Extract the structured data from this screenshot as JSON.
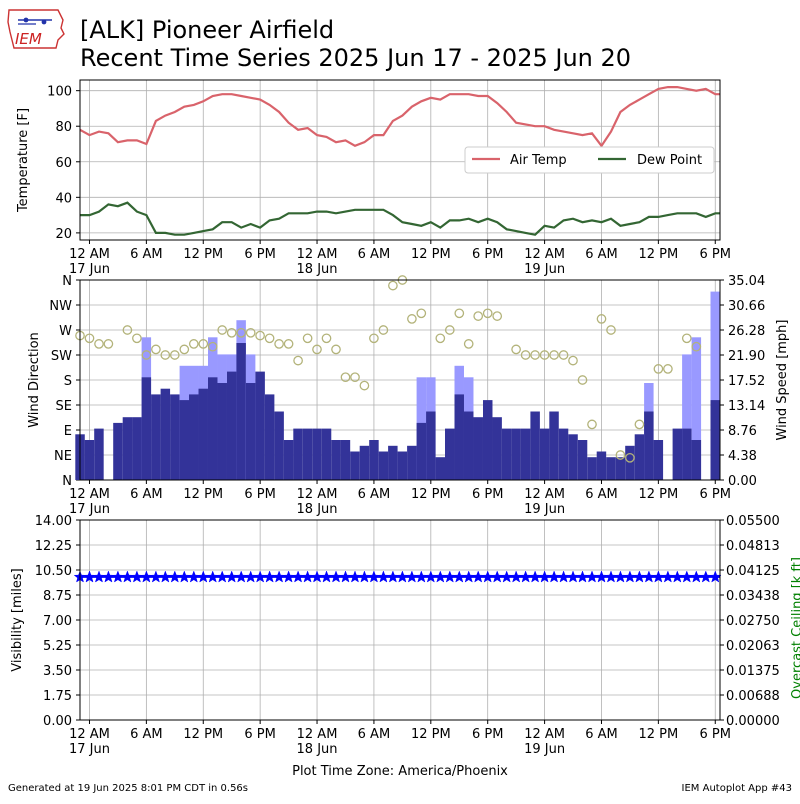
{
  "header": {
    "logo_text": "IEM",
    "title_line1": "[ALK] Pioneer Airfield",
    "title_line2": "Recent Time Series 2025 Jun 17 - 2025 Jun 20"
  },
  "footer": {
    "generated": "Generated at 19 Jun 2025 8:01 PM CDT in 0.56s",
    "app": "IEM Autoplot App #43",
    "timezone": "Plot Time Zone: America/Phoenix"
  },
  "time_axis": {
    "ticks": [
      {
        "h": 0,
        "label": "12 AM",
        "sub": "17 Jun"
      },
      {
        "h": 6,
        "label": "6 AM",
        "sub": ""
      },
      {
        "h": 12,
        "label": "12 PM",
        "sub": ""
      },
      {
        "h": 18,
        "label": "6 PM",
        "sub": ""
      },
      {
        "h": 24,
        "label": "12 AM",
        "sub": "18 Jun"
      },
      {
        "h": 30,
        "label": "6 AM",
        "sub": ""
      },
      {
        "h": 36,
        "label": "12 PM",
        "sub": ""
      },
      {
        "h": 42,
        "label": "6 PM",
        "sub": ""
      },
      {
        "h": 48,
        "label": "12 AM",
        "sub": "19 Jun"
      },
      {
        "h": 54,
        "label": "6 AM",
        "sub": ""
      },
      {
        "h": 60,
        "label": "12 PM",
        "sub": ""
      },
      {
        "h": 66,
        "label": "6 PM",
        "sub": ""
      }
    ]
  },
  "chart_data": [
    {
      "type": "line",
      "ylabel": "Temperature [F]",
      "ylim": [
        16,
        106
      ],
      "yticks": [
        20,
        40,
        60,
        80,
        100
      ],
      "xlim": [
        -1,
        66.5
      ],
      "grid": true,
      "legend_position": "right",
      "series": [
        {
          "name": "Air Temp",
          "color": "#d9636b",
          "x": [
            -1,
            0,
            1,
            2,
            3,
            4,
            5,
            6,
            7,
            8,
            9,
            10,
            11,
            12,
            13,
            14,
            15,
            16,
            17,
            18,
            19,
            20,
            21,
            22,
            23,
            24,
            25,
            26,
            27,
            28,
            29,
            30,
            31,
            32,
            33,
            34,
            35,
            36,
            37,
            38,
            39,
            40,
            41,
            42,
            43,
            44,
            45,
            46,
            47,
            48,
            49,
            50,
            51,
            52,
            53,
            54,
            55,
            56,
            57,
            58,
            59,
            60,
            61,
            62,
            63,
            64,
            65,
            66,
            66.5
          ],
          "values": [
            78,
            75,
            77,
            76,
            71,
            72,
            72,
            70,
            83,
            86,
            88,
            91,
            92,
            94,
            97,
            98,
            98,
            97,
            96,
            95,
            92,
            88,
            82,
            78,
            79,
            75,
            74,
            71,
            72,
            69,
            71,
            75,
            75,
            83,
            86,
            91,
            94,
            96,
            95,
            98,
            98,
            98,
            97,
            97,
            93,
            88,
            82,
            81,
            80,
            80,
            78,
            77,
            76,
            75,
            76,
            69,
            77,
            88,
            92,
            95,
            98,
            101,
            102,
            102,
            101,
            100,
            101,
            98,
            98
          ]
        },
        {
          "name": "Dew Point",
          "color": "#336633",
          "x": [
            -1,
            0,
            1,
            2,
            3,
            4,
            5,
            6,
            7,
            8,
            9,
            10,
            11,
            12,
            13,
            14,
            15,
            16,
            17,
            18,
            19,
            20,
            21,
            22,
            23,
            24,
            25,
            26,
            27,
            28,
            29,
            30,
            31,
            32,
            33,
            34,
            35,
            36,
            37,
            38,
            39,
            40,
            41,
            42,
            43,
            44,
            45,
            46,
            47,
            48,
            49,
            50,
            51,
            52,
            53,
            54,
            55,
            56,
            57,
            58,
            59,
            60,
            61,
            62,
            63,
            64,
            65,
            66,
            66.5
          ],
          "values": [
            30,
            30,
            32,
            36,
            35,
            37,
            32,
            30,
            20,
            20,
            19,
            19,
            20,
            21,
            22,
            26,
            26,
            23,
            25,
            23,
            27,
            28,
            31,
            31,
            31,
            32,
            32,
            31,
            32,
            33,
            33,
            33,
            33,
            30,
            26,
            25,
            24,
            26,
            23,
            27,
            27,
            28,
            26,
            28,
            26,
            22,
            21,
            20,
            19,
            24,
            23,
            27,
            28,
            26,
            27,
            26,
            28,
            24,
            25,
            26,
            29,
            29,
            30,
            31,
            31,
            31,
            29,
            31,
            31
          ]
        }
      ]
    },
    {
      "type": "bar",
      "ylabel": "Wind Direction",
      "y2label": "Wind Speed [mph]",
      "direction_labels": [
        "N",
        "NE",
        "E",
        "SE",
        "S",
        "SW",
        "W",
        "NW",
        "N"
      ],
      "direction_ylim": [
        0,
        360
      ],
      "speed_ticks": [
        "0.00",
        "4.38",
        "8.76",
        "13.14",
        "17.52",
        "21.90",
        "26.28",
        "30.66",
        "35.04"
      ],
      "speed_ylim": [
        0,
        35.04
      ],
      "xlim": [
        -1,
        66.5
      ],
      "grid": true,
      "gust_color": "#9999ff",
      "speed_color": "#333399",
      "direction_marker_color": "#b3b37a",
      "x": [
        -1,
        0,
        1,
        2,
        3,
        4,
        5,
        6,
        7,
        8,
        9,
        10,
        11,
        12,
        13,
        14,
        15,
        16,
        17,
        18,
        19,
        20,
        21,
        22,
        23,
        24,
        25,
        26,
        27,
        28,
        29,
        30,
        31,
        32,
        33,
        34,
        35,
        36,
        37,
        38,
        39,
        40,
        41,
        42,
        43,
        44,
        45,
        46,
        47,
        48,
        49,
        50,
        51,
        52,
        53,
        54,
        55,
        56,
        57,
        58,
        59,
        60,
        61,
        62,
        63,
        64,
        65,
        66
      ],
      "speed_mph": [
        8,
        7,
        9,
        0,
        10,
        11,
        11,
        18,
        15,
        16,
        15,
        14,
        15,
        16,
        18,
        17,
        19,
        24,
        17,
        19,
        15,
        12,
        7,
        9,
        9,
        9,
        9,
        7,
        7,
        5,
        6,
        7,
        5,
        6,
        5,
        6,
        10,
        12,
        4,
        9,
        15,
        12,
        11,
        14,
        11,
        9,
        9,
        9,
        12,
        9,
        12,
        9,
        8,
        7,
        4,
        5,
        4,
        4,
        6,
        8,
        12,
        7,
        0,
        9,
        9,
        7,
        0,
        14
      ],
      "gust_mph": [
        0,
        0,
        0,
        0,
        0,
        0,
        0,
        25,
        0,
        0,
        0,
        20,
        20,
        20,
        25,
        22,
        22,
        28,
        22,
        0,
        0,
        0,
        0,
        0,
        0,
        0,
        0,
        0,
        0,
        0,
        0,
        0,
        0,
        0,
        0,
        0,
        18,
        18,
        0,
        0,
        20,
        18,
        0,
        0,
        0,
        0,
        0,
        0,
        0,
        0,
        0,
        0,
        0,
        0,
        0,
        0,
        0,
        0,
        0,
        0,
        17,
        0,
        0,
        0,
        22,
        25,
        0,
        33
      ],
      "direction_deg": [
        260,
        255,
        245,
        245,
        null,
        270,
        255,
        225,
        235,
        225,
        225,
        235,
        245,
        245,
        240,
        270,
        265,
        265,
        265,
        260,
        255,
        245,
        245,
        215,
        255,
        235,
        255,
        235,
        185,
        185,
        170,
        255,
        270,
        350,
        360,
        290,
        300,
        null,
        255,
        270,
        300,
        245,
        295,
        300,
        295,
        null,
        235,
        225,
        225,
        225,
        225,
        225,
        215,
        180,
        100,
        290,
        270,
        45,
        40,
        100,
        null,
        200,
        200,
        null,
        255,
        240,
        null,
        null
      ]
    },
    {
      "type": "scatter",
      "ylabel": "Visibility [miles]",
      "y2label": "Overcast Ceiling [k ft]",
      "y2label_color": "#008000",
      "visibility_ticks": [
        "0.00",
        "1.75",
        "3.50",
        "5.25",
        "7.00",
        "8.75",
        "10.50",
        "12.25",
        "14.00"
      ],
      "visibility_ylim": [
        0,
        14
      ],
      "ceiling_ticks": [
        "0.00000",
        "0.00688",
        "0.01375",
        "0.02063",
        "0.02750",
        "0.03438",
        "0.04125",
        "0.04813",
        "0.05500"
      ],
      "ceiling_ylim": [
        0,
        0.055
      ],
      "xlim": [
        -1,
        66.5
      ],
      "grid": true,
      "marker_color": "#0000ff",
      "visibility_miles": 10,
      "x_hours_start": -1,
      "x_hours_end": 66.5
    }
  ]
}
